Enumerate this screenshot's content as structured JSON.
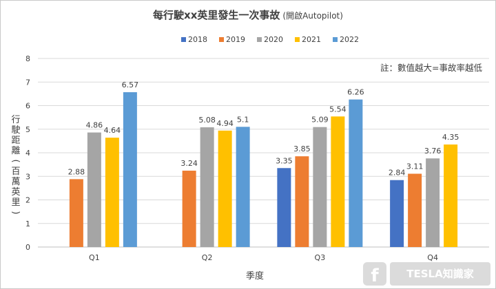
{
  "chart_data": {
    "type": "bar",
    "title": "每行駛xx英里發生一次事故",
    "subtitle": "(開啟Autopilot)",
    "categories": [
      "Q1",
      "Q2",
      "Q3",
      "Q4"
    ],
    "series": [
      {
        "name": "2018",
        "color": "#4472C4",
        "values": [
          null,
          null,
          3.35,
          2.84
        ]
      },
      {
        "name": "2019",
        "color": "#ED7D31",
        "values": [
          2.88,
          3.24,
          3.85,
          3.11
        ]
      },
      {
        "name": "2020",
        "color": "#A5A5A5",
        "values": [
          4.86,
          5.08,
          5.09,
          3.76
        ]
      },
      {
        "name": "2021",
        "color": "#FFC000",
        "values": [
          4.64,
          4.94,
          5.54,
          4.35
        ]
      },
      {
        "name": "2022",
        "color": "#5B9BD5",
        "values": [
          6.57,
          5.1,
          6.26,
          null
        ]
      }
    ],
    "value_labels": [
      [
        null,
        null,
        "3.35",
        "2.84"
      ],
      [
        "2.88",
        "3.24",
        "3.85",
        "3.11"
      ],
      [
        "4.86",
        "5.08",
        "5.09",
        "3.76"
      ],
      [
        "4.64",
        "4.94",
        "5.54",
        "4.35"
      ],
      [
        "6.57",
        "5.1",
        "6.26",
        null
      ]
    ],
    "xlabel": "季度",
    "ylabel_chars": [
      "行",
      "駛",
      "距",
      "離",
      "(",
      "百",
      "萬",
      "英",
      "里",
      ")"
    ],
    "ylim": [
      0,
      8
    ],
    "yticks": [
      0,
      1,
      2,
      3,
      4,
      5,
      6,
      7,
      8
    ],
    "grid": true,
    "legend_position": "top-center",
    "annotation": "註：數值越大=事故率越低"
  },
  "watermark": {
    "text": "TESLA知識家",
    "icon": "facebook-icon"
  }
}
